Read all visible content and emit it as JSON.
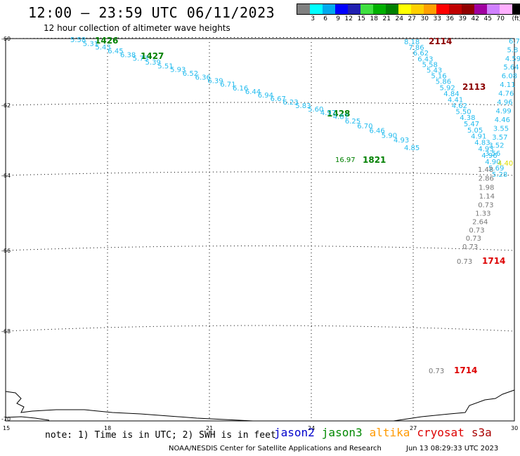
{
  "header": {
    "title": "12:00 – 23:59 UTC 06/11/2023",
    "subtitle": "12 hour collection of altimeter wave heights"
  },
  "legend": {
    "colors": [
      "#808080",
      "#00ffff",
      "#00aaee",
      "#0000ff",
      "#2020b0",
      "#40e040",
      "#00b000",
      "#008000",
      "#ffff00",
      "#ffd000",
      "#ffa000",
      "#ff0000",
      "#c00000",
      "#900000",
      "#a000a0",
      "#d080ff",
      "#ffb0ff",
      "#000000"
    ],
    "labels": [
      "3",
      "6",
      "9",
      "12",
      "15",
      "18",
      "21",
      "24",
      "27",
      "30",
      "33",
      "36",
      "39",
      "42",
      "45",
      "70"
    ],
    "unit": "(ft)"
  },
  "axes": {
    "lat_labels": [
      "-60",
      "-62",
      "-64",
      "-66",
      "-68",
      "-70"
    ],
    "lon_labels": [
      "15",
      "18",
      "21",
      "24",
      "27",
      "30"
    ]
  },
  "passes": [
    {
      "label": "1426",
      "color": "#008000"
    },
    {
      "label": "1427",
      "color": "#008000"
    },
    {
      "label": "1428",
      "color": "#008000"
    },
    {
      "label": "1821",
      "color": "#008000"
    },
    {
      "label": "2114",
      "color": "#8b0000"
    },
    {
      "label": "2113",
      "color": "#8b0000"
    },
    {
      "label": "1714",
      "color": "#dd0000"
    },
    {
      "label": "1714",
      "color": "#dd0000"
    }
  ],
  "track_values": {
    "cyan_track_1": [
      "5.58",
      "5.31",
      "5.43",
      "6.45",
      "6.38",
      "5.73",
      "5.39",
      "5.51",
      "5.93",
      "6.52",
      "6.36",
      "6.39",
      "6.71",
      "6.16",
      "6.44",
      "6.94",
      "6.67",
      "6.23",
      "5.83",
      "5.60",
      "4.97",
      "4.87",
      "6.25",
      "6.70",
      "6.46",
      "5.90",
      "4.93",
      "4.85"
    ],
    "cyan_track_2": [
      "8.18",
      "7.86",
      "6.62",
      "6.43",
      "5.58",
      "5.43",
      "5.16",
      "5.86",
      "5.92",
      "4.84",
      "4.41",
      "4.62",
      "5.50",
      "4.38",
      "5.47",
      "5.05",
      "4.91",
      "4.83",
      "4.93",
      "4.96",
      "4.90",
      "5.69",
      "5.28"
    ],
    "cyan_track_3": [
      "6.7",
      "5.8",
      "4.59",
      "5.64",
      "6.08",
      "4.11",
      "4.76",
      "4.96",
      "4.99",
      "4.46",
      "3.55",
      "3.57",
      "3.52",
      "3.56"
    ],
    "green_value": "16.97",
    "yellow_value": "4.40",
    "gray_values": [
      "1.48",
      "2.86",
      "1.98",
      "1.14",
      "0.73",
      "1.33",
      "2.64",
      "0.73",
      "0.73",
      "0.73"
    ],
    "gray_label_1": "0.73",
    "gray_label_2": "0.73"
  },
  "footer": {
    "note": "note: 1) Time is in UTC; 2) SWH is in feet",
    "satellites": [
      {
        "name": "jason2",
        "color": "#0000cc"
      },
      {
        "name": "jason3",
        "color": "#008800"
      },
      {
        "name": "altika",
        "color": "#ff9900"
      },
      {
        "name": "cryosat",
        "color": "#dd0000"
      },
      {
        "name": "s3a",
        "color": "#aa0000"
      }
    ],
    "credit": "NOAA/NESDIS Center for Satellite Applications and Research",
    "generated": "Jun 13 08:29:33 UTC 2023"
  }
}
